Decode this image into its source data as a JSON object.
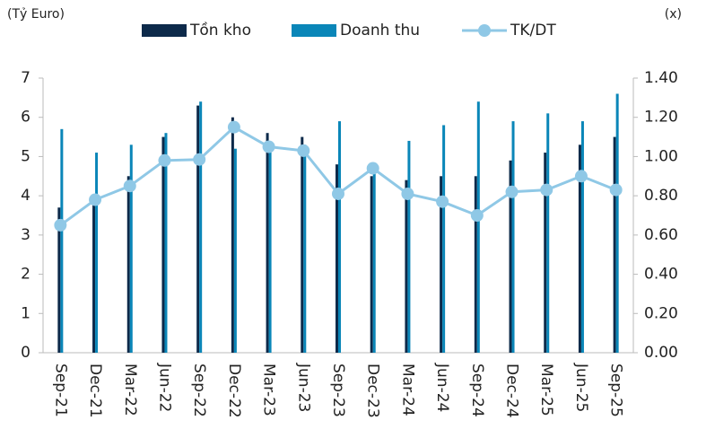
{
  "chart_data": {
    "type": "bar_line",
    "y_label": "(Tỷ Euro)",
    "y2_label": "(x)",
    "categories": [
      "Sep-21",
      "Dec-21",
      "Mar-22",
      "Jun-22",
      "Sep-22",
      "Dec-22",
      "Mar-23",
      "Jun-23",
      "Sep-23",
      "Dec-23",
      "Mar-24",
      "Jun-24",
      "Sep-24",
      "Dec-24",
      "Mar-25",
      "Jun-25",
      "Sep-25"
    ],
    "series": [
      {
        "name": "Tồn kho",
        "type": "bar",
        "color": "#0d2a4a",
        "values": [
          3.7,
          3.9,
          4.5,
          5.5,
          6.3,
          6.0,
          5.6,
          5.5,
          4.8,
          4.5,
          4.4,
          4.5,
          4.5,
          4.9,
          5.1,
          5.3,
          5.5
        ]
      },
      {
        "name": "Doanh thu",
        "type": "bar",
        "color": "#0a86b8",
        "values": [
          5.7,
          5.1,
          5.3,
          5.6,
          6.4,
          5.2,
          5.3,
          5.3,
          5.9,
          4.8,
          5.4,
          5.8,
          6.4,
          5.9,
          6.1,
          5.9,
          6.6
        ]
      },
      {
        "name": "TK/DT",
        "type": "line",
        "axis": "y2",
        "color": "#8fc8e6",
        "values": [
          0.65,
          0.78,
          0.85,
          0.98,
          0.985,
          1.15,
          1.05,
          1.03,
          0.81,
          0.94,
          0.81,
          0.77,
          0.7,
          0.82,
          0.83,
          0.9,
          0.83
        ]
      }
    ],
    "ylim": [
      0,
      7
    ],
    "yticks": [
      0,
      1,
      2,
      3,
      4,
      5,
      6,
      7
    ],
    "y2lim": [
      0,
      1.4
    ],
    "y2ticks": [
      {
        "value": 0,
        "label": "0.00"
      },
      {
        "value": 0.2,
        "label": "0.20"
      },
      {
        "value": 0.4,
        "label": "0.40"
      },
      {
        "value": 0.6,
        "label": "0.60"
      },
      {
        "value": 0.8,
        "label": "0.80"
      },
      {
        "value": 1.0,
        "label": "1.00"
      },
      {
        "value": 1.2,
        "label": "1.20"
      },
      {
        "value": 1.4,
        "label": "1.40"
      }
    ],
    "grid": false
  }
}
